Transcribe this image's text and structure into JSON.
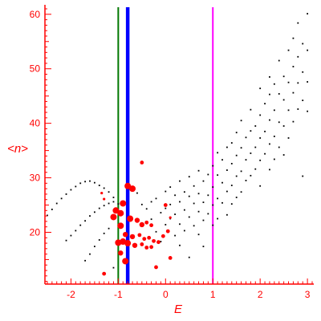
{
  "chart_data": {
    "type": "scatter",
    "title": "",
    "xlabel": "E",
    "ylabel": "<n>",
    "xlim": [
      -2.55,
      3.1
    ],
    "ylim": [
      10.5,
      61
    ],
    "grid": false,
    "colors": {
      "axis": "#ff0000",
      "black_points": "#000000",
      "red_points": "#ff0000",
      "green_line": "#007700",
      "blue_line": "#0000ff",
      "magenta_line": "#ff00ff"
    },
    "x_ticks": [
      -2,
      -1,
      0,
      1,
      2,
      3
    ],
    "x_tick_labels": [
      "-2",
      "-1",
      "0",
      "1",
      "2",
      "3"
    ],
    "y_ticks": [
      20,
      30,
      40,
      50,
      60
    ],
    "y_tick_labels": [
      "20",
      "30",
      "40",
      "50",
      "60"
    ],
    "vertical_lines": [
      {
        "x": -1.0,
        "color": "#007700",
        "width": "thin"
      },
      {
        "x": -0.8,
        "color": "#0000ff",
        "width": "thick"
      },
      {
        "x": 1.0,
        "color": "#ff00ff",
        "width": "thin"
      }
    ],
    "series": [
      {
        "marker": "small-black-dot",
        "points": [
          [
            -2.5,
            23.1
          ],
          [
            -2.4,
            24.2
          ],
          [
            -2.3,
            25.3
          ],
          [
            -2.2,
            26.2
          ],
          [
            -2.1,
            27.0
          ],
          [
            -2.0,
            27.8
          ],
          [
            -1.9,
            28.4
          ],
          [
            -1.8,
            29.0
          ],
          [
            -1.7,
            29.3
          ],
          [
            -1.6,
            29.4
          ],
          [
            -1.5,
            29.1
          ],
          [
            -1.4,
            28.6
          ],
          [
            -1.3,
            28.1
          ],
          [
            -1.2,
            27.4
          ],
          [
            -1.1,
            26.4
          ],
          [
            -1.0,
            25.2
          ],
          [
            -2.1,
            18.5
          ],
          [
            -2.0,
            19.4
          ],
          [
            -1.9,
            20.3
          ],
          [
            -1.8,
            21.3
          ],
          [
            -1.7,
            22.1
          ],
          [
            -1.6,
            23.0
          ],
          [
            -1.5,
            23.7
          ],
          [
            -1.4,
            24.4
          ],
          [
            -1.3,
            24.9
          ],
          [
            -1.2,
            25.3
          ],
          [
            -1.1,
            25.6
          ],
          [
            -1.7,
            14.8
          ],
          [
            -1.6,
            16.0
          ],
          [
            -1.5,
            17.4
          ],
          [
            -1.4,
            18.6
          ],
          [
            -1.3,
            19.8
          ],
          [
            -1.2,
            20.7
          ],
          [
            -1.3,
            12.5
          ],
          [
            -1.1,
            13.5
          ],
          [
            -0.6,
            27.2
          ],
          [
            -0.5,
            25.1
          ],
          [
            -0.4,
            24.3
          ],
          [
            -0.3,
            25.6
          ],
          [
            -0.3,
            22.4
          ],
          [
            -0.2,
            26.2
          ],
          [
            -0.2,
            20.1
          ],
          [
            -0.1,
            23.6
          ],
          [
            -0.1,
            18.3
          ],
          [
            0.0,
            27.5
          ],
          [
            0.0,
            24.4
          ],
          [
            0.0,
            21.4
          ],
          [
            0.1,
            28.3
          ],
          [
            0.1,
            25.1
          ],
          [
            0.1,
            22.5
          ],
          [
            0.2,
            26.8
          ],
          [
            0.2,
            23.3
          ],
          [
            0.2,
            19.4
          ],
          [
            0.3,
            29.4
          ],
          [
            0.3,
            25.6
          ],
          [
            0.3,
            21.5
          ],
          [
            0.3,
            17.6
          ],
          [
            0.4,
            27.4
          ],
          [
            0.4,
            24.1
          ],
          [
            0.4,
            20.3
          ],
          [
            0.5,
            30.2
          ],
          [
            0.5,
            26.6
          ],
          [
            0.5,
            22.8
          ],
          [
            0.5,
            15.4
          ],
          [
            0.6,
            28.5
          ],
          [
            0.6,
            25.3
          ],
          [
            0.6,
            21.2
          ],
          [
            0.7,
            31.3
          ],
          [
            0.7,
            27.1
          ],
          [
            0.7,
            23.8
          ],
          [
            0.7,
            19.6
          ],
          [
            0.8,
            29.4
          ],
          [
            0.8,
            25.5
          ],
          [
            0.8,
            22.2
          ],
          [
            0.8,
            17.4
          ],
          [
            0.9,
            30.6
          ],
          [
            0.9,
            26.8
          ],
          [
            0.9,
            23.4
          ],
          [
            1.0,
            32.2
          ],
          [
            1.0,
            28.3
          ],
          [
            1.0,
            25.0
          ],
          [
            1.0,
            21.3
          ],
          [
            1.1,
            34.6
          ],
          [
            1.1,
            30.5
          ],
          [
            1.1,
            26.2
          ],
          [
            1.1,
            22.5
          ],
          [
            1.2,
            33.3
          ],
          [
            1.2,
            29.1
          ],
          [
            1.2,
            25.4
          ],
          [
            1.3,
            35.6
          ],
          [
            1.3,
            31.4
          ],
          [
            1.3,
            27.5
          ],
          [
            1.3,
            23.2
          ],
          [
            1.4,
            36.4
          ],
          [
            1.4,
            32.6
          ],
          [
            1.4,
            28.6
          ],
          [
            1.4,
            25.2
          ],
          [
            1.5,
            38.3
          ],
          [
            1.5,
            34.1
          ],
          [
            1.5,
            30.3
          ],
          [
            1.5,
            26.4
          ],
          [
            1.6,
            40.5
          ],
          [
            1.6,
            35.5
          ],
          [
            1.6,
            31.2
          ],
          [
            1.6,
            27.4
          ],
          [
            1.7,
            37.4
          ],
          [
            1.7,
            33.3
          ],
          [
            1.7,
            29.5
          ],
          [
            1.8,
            42.5
          ],
          [
            1.8,
            38.6
          ],
          [
            1.8,
            34.5
          ],
          [
            1.8,
            30.4
          ],
          [
            1.9,
            39.5
          ],
          [
            1.9,
            35.6
          ],
          [
            1.9,
            31.6
          ],
          [
            2.0,
            46.4
          ],
          [
            2.0,
            41.5
          ],
          [
            2.0,
            37.3
          ],
          [
            2.0,
            33.2
          ],
          [
            2.0,
            28.5
          ],
          [
            2.1,
            43.6
          ],
          [
            2.1,
            38.5
          ],
          [
            2.1,
            34.4
          ],
          [
            2.2,
            48.5
          ],
          [
            2.2,
            45.3
          ],
          [
            2.2,
            40.6
          ],
          [
            2.2,
            36.2
          ],
          [
            2.2,
            31.5
          ],
          [
            2.3,
            47.2
          ],
          [
            2.3,
            42.4
          ],
          [
            2.3,
            37.6
          ],
          [
            2.3,
            33.4
          ],
          [
            2.4,
            51.5
          ],
          [
            2.4,
            45.4
          ],
          [
            2.4,
            40.2
          ],
          [
            2.4,
            35.6
          ],
          [
            2.5,
            48.6
          ],
          [
            2.5,
            44.3
          ],
          [
            2.5,
            39.5
          ],
          [
            2.5,
            34.2
          ],
          [
            2.6,
            53.4
          ],
          [
            2.6,
            47.5
          ],
          [
            2.6,
            42.4
          ],
          [
            2.6,
            37.3
          ],
          [
            2.7,
            55.6
          ],
          [
            2.7,
            50.4
          ],
          [
            2.7,
            45.6
          ],
          [
            2.7,
            40.3
          ],
          [
            2.8,
            58.4
          ],
          [
            2.8,
            52.2
          ],
          [
            2.8,
            47.4
          ],
          [
            2.8,
            42.6
          ],
          [
            2.9,
            54.6
          ],
          [
            2.9,
            49.4
          ],
          [
            2.9,
            44.2
          ],
          [
            3.0,
            60.1
          ],
          [
            3.0,
            53.4
          ],
          [
            3.0,
            47.6
          ],
          [
            3.0,
            42.2
          ],
          [
            2.9,
            30.3
          ]
        ]
      },
      {
        "marker": "red-blob",
        "points": [
          [
            -0.8,
            28.5,
            5
          ],
          [
            -0.7,
            28.0,
            5
          ],
          [
            -0.9,
            25.3,
            5
          ],
          [
            -1.05,
            24.0,
            5
          ],
          [
            -0.95,
            23.5,
            5
          ],
          [
            -1.1,
            22.8,
            5
          ],
          [
            -0.75,
            22.5,
            5
          ],
          [
            -0.6,
            22.2,
            4
          ],
          [
            -0.5,
            21.4,
            4
          ],
          [
            -0.4,
            21.8,
            3
          ],
          [
            -0.3,
            21.3,
            3
          ],
          [
            -0.95,
            21.2,
            5
          ],
          [
            -0.85,
            19.6,
            4
          ],
          [
            -0.7,
            19.2,
            4
          ],
          [
            -0.55,
            19.5,
            3
          ],
          [
            -0.45,
            18.8,
            3
          ],
          [
            -0.35,
            19.0,
            3
          ],
          [
            -0.25,
            18.4,
            3
          ],
          [
            -0.9,
            18.3,
            5
          ],
          [
            -1.0,
            18.1,
            5
          ],
          [
            -0.8,
            18.0,
            5
          ],
          [
            -0.65,
            17.6,
            4
          ],
          [
            -0.5,
            17.8,
            3
          ],
          [
            -0.4,
            17.2,
            3
          ],
          [
            -0.3,
            17.3,
            3
          ],
          [
            -0.15,
            18.2,
            3
          ],
          [
            -0.05,
            19.3,
            3
          ],
          [
            0.05,
            20.2,
            3
          ],
          [
            -0.85,
            14.7,
            5
          ],
          [
            -0.95,
            16.2,
            4
          ],
          [
            -0.2,
            13.6,
            3
          ],
          [
            0.1,
            15.3,
            3
          ],
          [
            -0.5,
            32.8,
            3
          ],
          [
            -1.3,
            12.4,
            3
          ],
          [
            -1.35,
            27.2,
            2
          ],
          [
            -1.3,
            26.1,
            2
          ],
          [
            0.0,
            25.0,
            3
          ],
          [
            0.1,
            22.7,
            2
          ]
        ]
      }
    ]
  }
}
